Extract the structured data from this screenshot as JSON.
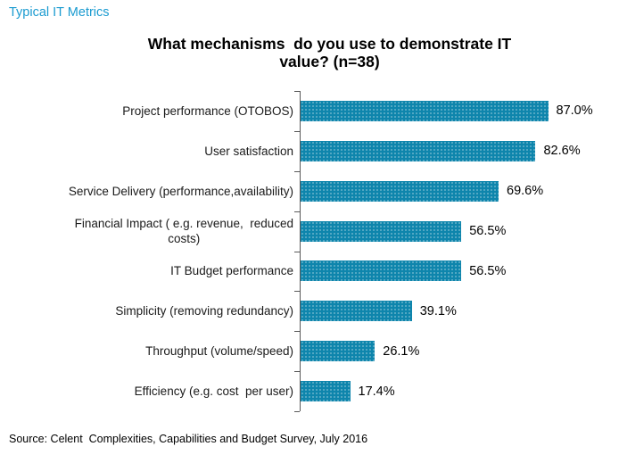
{
  "page": {
    "header": "Typical IT Metrics",
    "source": "Source: Celent  Complexities, Capabilities and Budget Survey, July 2016"
  },
  "chart_data": {
    "type": "bar",
    "orientation": "horizontal",
    "title": "What mechanisms  do you use to demonstrate IT\nvalue? (n=38)",
    "categories": [
      "Project performance (OTOBOS)",
      "User satisfaction",
      "Service Delivery (performance,availability)",
      "Financial Impact ( e.g. revenue,  reduced\ncosts)",
      "IT Budget performance",
      "Simplicity (removing redundancy)",
      "Throughput (volume/speed)",
      "Efficiency (e.g. cost  per user)"
    ],
    "values": [
      87.0,
      82.6,
      69.6,
      56.5,
      56.5,
      39.1,
      26.1,
      17.4
    ],
    "value_labels": [
      "87.0%",
      "82.6%",
      "69.6%",
      "56.5%",
      "56.5%",
      "39.1%",
      "26.1%",
      "17.4%"
    ],
    "xlabel": "",
    "ylabel": "",
    "xlim": [
      0,
      100
    ],
    "grid": false,
    "legend": false,
    "data_labels": "outside-end",
    "bar_color": "#0e85ac",
    "axis_color": "#595959",
    "header_color": "#1a9bd0"
  }
}
